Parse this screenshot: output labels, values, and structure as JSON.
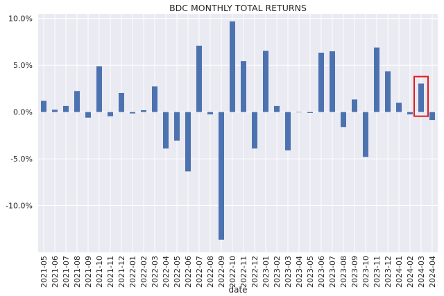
{
  "chart_data": {
    "type": "bar",
    "title": "BDC MONTHLY TOTAL RETURNS",
    "xlabel": "date",
    "ylabel": "",
    "categories": [
      "2021-05",
      "2021-06",
      "2021-07",
      "2021-08",
      "2021-09",
      "2021-10",
      "2021-11",
      "2021-12",
      "2022-01",
      "2022-02",
      "2022-03",
      "2022-04",
      "2022-05",
      "2022-06",
      "2022-07",
      "2022-08",
      "2022-09",
      "2022-10",
      "2022-11",
      "2022-12",
      "2023-01",
      "2023-02",
      "2023-03",
      "2023-04",
      "2023-05",
      "2023-06",
      "2023-07",
      "2023-08",
      "2023-09",
      "2023-10",
      "2023-11",
      "2023-12",
      "2024-01",
      "2024-02",
      "2024-03",
      "2024-04"
    ],
    "values": [
      1.2,
      0.25,
      0.65,
      2.25,
      -0.6,
      4.9,
      -0.45,
      2.05,
      -0.15,
      0.2,
      2.75,
      -3.9,
      -3.05,
      -6.35,
      7.1,
      -0.25,
      -13.65,
      9.7,
      5.45,
      -3.9,
      6.55,
      0.65,
      -4.1,
      0.0,
      -0.1,
      6.35,
      6.5,
      -1.6,
      1.35,
      -4.8,
      6.9,
      4.35,
      1.0,
      -0.25,
      3.05,
      -0.85
    ],
    "ylim": [
      -15,
      10.5
    ],
    "yticks": [
      10,
      5,
      0,
      -5,
      -10
    ],
    "ytick_labels": [
      "10.0%",
      "5.0%",
      "0.0%",
      "-5.0%",
      "-10.0%"
    ],
    "grid": true,
    "bar_color": "#4c72b0",
    "background_color": "#eaeaf2",
    "highlight": {
      "category": "2024-03",
      "color": "#e31a1c"
    }
  }
}
